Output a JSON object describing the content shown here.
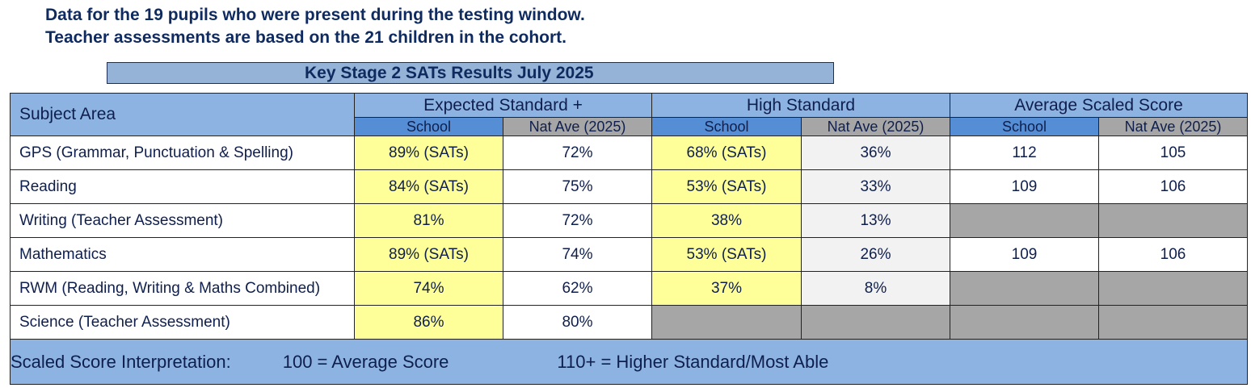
{
  "intro": {
    "line1": "Data for the 19 pupils who were present during the testing window.",
    "line2": "Teacher assessments are based on the 21 children in the cohort."
  },
  "title": "Key Stage 2 SATs Results July 2025",
  "header": {
    "subject_area": "Subject Area",
    "groups": [
      "Expected Standard +",
      "High Standard",
      "Average Scaled Score"
    ],
    "sub": [
      "School",
      "Nat Ave (2025)",
      "School",
      "Nat Ave (2025)",
      "School",
      "Nat Ave (2025)"
    ]
  },
  "rows": [
    {
      "subject": "GPS (Grammar, Punctuation & Spelling)",
      "exp_school": "89% (SATs)",
      "exp_nat": "72%",
      "high_school": "68% (SATs)",
      "high_nat": "36%",
      "ass_school": "112",
      "ass_nat": "105"
    },
    {
      "subject": "Reading",
      "exp_school": "84% (SATs)",
      "exp_nat": "75%",
      "high_school": "53% (SATs)",
      "high_nat": "33%",
      "ass_school": "109",
      "ass_nat": "106"
    },
    {
      "subject": "Writing (Teacher Assessment)",
      "exp_school": "81%",
      "exp_nat": "72%",
      "high_school": "38%",
      "high_nat": "13%",
      "ass_school": "",
      "ass_nat": ""
    },
    {
      "subject": "Mathematics",
      "exp_school": "89% (SATs)",
      "exp_nat": "74%",
      "high_school": "53% (SATs)",
      "high_nat": "26%",
      "ass_school": "109",
      "ass_nat": "106"
    },
    {
      "subject": "RWM (Reading, Writing & Maths Combined)",
      "exp_school": "74%",
      "exp_nat": "62%",
      "high_school": "37%",
      "high_nat": "8%",
      "ass_school": "",
      "ass_nat": ""
    },
    {
      "subject": "Science (Teacher Assessment)",
      "exp_school": "86%",
      "exp_nat": "80%",
      "high_school": "",
      "high_nat": "",
      "ass_school": "",
      "ass_nat": ""
    }
  ],
  "footer": {
    "label": "Scaled Score Interpretation:",
    "item1": "100 = Average Score",
    "item2": "110+ = Higher Standard/Most Able"
  },
  "colors": {
    "header_blue": "#8db3e2",
    "school_header": "#558ed5",
    "nat_header_gray": "#a6a6a6",
    "highlight_yellow": "#ffff99",
    "light_gray": "#f2f2f2",
    "text_navy": "#0f2a5e"
  }
}
